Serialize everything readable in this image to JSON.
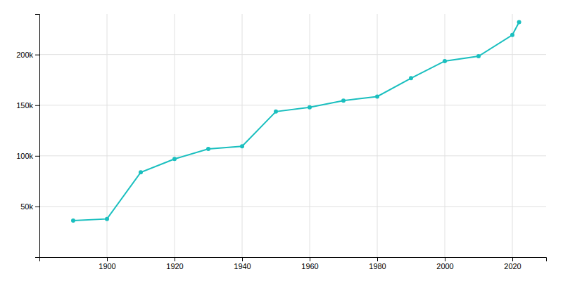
{
  "chart_data": {
    "type": "line",
    "x": [
      1890,
      1900,
      1910,
      1920,
      1930,
      1940,
      1950,
      1960,
      1970,
      1980,
      1990,
      2000,
      2010,
      2020,
      2022
    ],
    "values": [
      36006,
      37714,
      83743,
      96965,
      106817,
      109408,
      143673,
      147979,
      154581,
      158501,
      176664,
      193556,
      198397,
      219346,
      232000
    ],
    "color": "#1ABFBF",
    "marker": "circle",
    "xlim": [
      1880,
      2030
    ],
    "xticks": [
      1900,
      1920,
      1940,
      1960,
      1980,
      2000,
      2020
    ],
    "ylim": [
      0,
      240000
    ],
    "yticks": [
      {
        "value": 50000,
        "label": "50k"
      },
      {
        "value": 100000,
        "label": "100k"
      },
      {
        "value": 150000,
        "label": "150k"
      },
      {
        "value": 200000,
        "label": "200k"
      }
    ],
    "grid": true
  }
}
